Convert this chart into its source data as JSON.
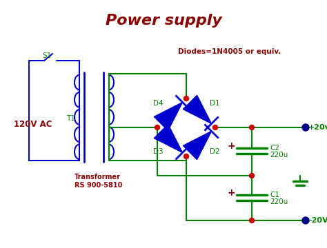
{
  "title": "Power supply",
  "title_color": "#8B0000",
  "title_fontsize": 16,
  "bg_color": "#ffffff",
  "wire_color": "#008000",
  "blue_color": "#0000CD",
  "red_label_color": "#8B0000",
  "dot_color": "#CC0000",
  "output_dot_color": "#00008B",
  "diode_fill": "#0000CD",
  "label_120V": "120V AC",
  "label_S1": "S1",
  "label_T1": "T1",
  "label_transformer": "Transformer\nRS 900-5810",
  "label_diodes": "Diodes=1N4005 or equiv.",
  "label_D1": "D1",
  "label_D2": "D2",
  "label_D3": "D3",
  "label_D4": "D4",
  "label_C2": "C2\n220u",
  "label_C1": "C1\n220u",
  "label_plus": "+",
  "label_pos20": "+20v",
  "label_neg20": "-20V"
}
